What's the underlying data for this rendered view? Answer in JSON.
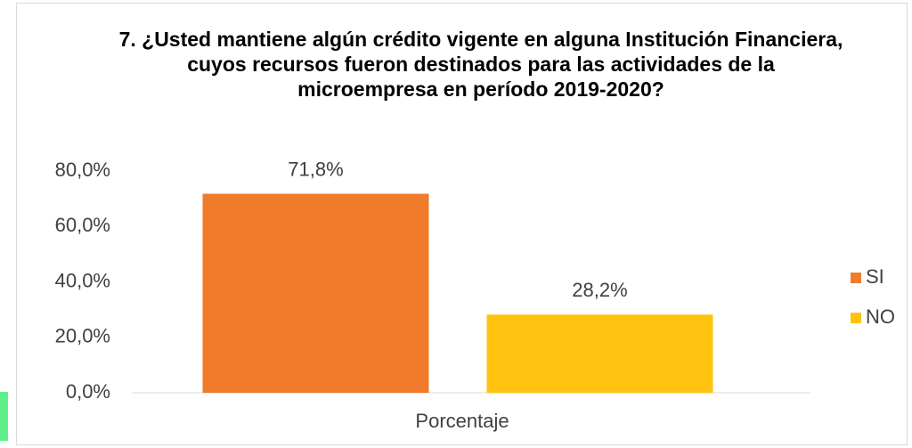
{
  "chart_data": {
    "type": "bar",
    "title": "7. ¿Usted mantiene algún crédito vigente en alguna Institución Financiera, cuyos recursos fueron destinados para las actividades de la microempresa en período 2019-2020?",
    "categories": [
      "Porcentaje"
    ],
    "series": [
      {
        "name": "SI",
        "color": "#ef7b2b",
        "values": [
          71.8
        ],
        "value_labels": [
          "71,8%"
        ]
      },
      {
        "name": "NO",
        "color": "#ffc30f",
        "values": [
          28.2
        ],
        "value_labels": [
          "28,2%"
        ]
      }
    ],
    "ylim": [
      0,
      80
    ],
    "yticks": [
      {
        "value": 0,
        "label": "0,0%"
      },
      {
        "value": 20,
        "label": "20,0%"
      },
      {
        "value": 40,
        "label": "40,0%"
      },
      {
        "value": 60,
        "label": "60,0%"
      },
      {
        "value": 80,
        "label": "80,0%"
      }
    ],
    "legend": "right"
  }
}
